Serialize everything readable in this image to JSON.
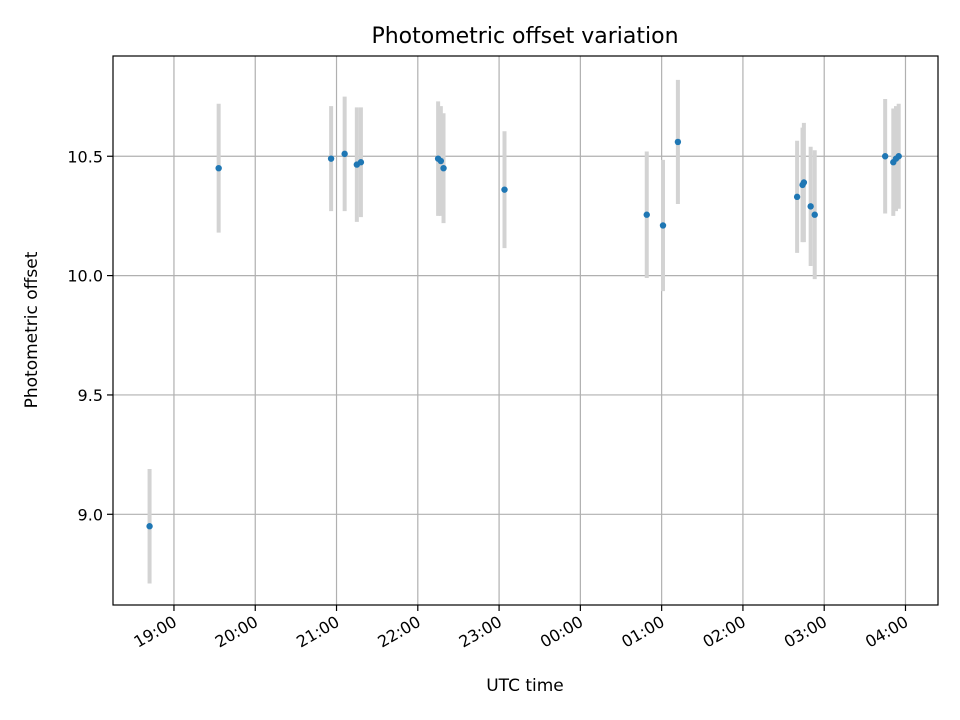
{
  "chart_data": {
    "type": "scatter",
    "title": "Photometric offset variation",
    "xlabel": "UTC time",
    "ylabel": "Photometric offset",
    "x_axis": "time (UTC, HH:MM), night spanning midnight",
    "xlim": [
      "18:15",
      "04:24"
    ],
    "ylim": [
      8.62,
      10.92
    ],
    "x_ticks": [
      "19:00",
      "20:00",
      "21:00",
      "22:00",
      "23:00",
      "00:00",
      "01:00",
      "02:00",
      "03:00",
      "04:00"
    ],
    "y_ticks": [
      "9.0",
      "9.5",
      "10.0",
      "10.5"
    ],
    "grid": true,
    "colors": {
      "point": "#1f77b4",
      "errorbar": "#d3d3d3",
      "grid": "#b0b0b0"
    },
    "series": [
      {
        "points": [
          {
            "x": "18:42",
            "y": 8.95,
            "yerr": 0.24
          },
          {
            "x": "19:33",
            "y": 10.45,
            "yerr": 0.27
          },
          {
            "x": "20:56",
            "y": 10.49,
            "yerr": 0.22
          },
          {
            "x": "21:06",
            "y": 10.51,
            "yerr": 0.24
          },
          {
            "x": "21:15",
            "y": 10.465,
            "yerr": 0.24
          },
          {
            "x": "21:18",
            "y": 10.475,
            "yerr": 0.23
          },
          {
            "x": "22:15",
            "y": 10.49,
            "yerr": 0.24
          },
          {
            "x": "22:17",
            "y": 10.48,
            "yerr": 0.23
          },
          {
            "x": "22:19",
            "y": 10.45,
            "yerr": 0.23
          },
          {
            "x": "23:04",
            "y": 10.36,
            "yerr": 0.245
          },
          {
            "x": "00:49",
            "y": 10.255,
            "yerr": 0.265
          },
          {
            "x": "01:01",
            "y": 10.21,
            "yerr": 0.275
          },
          {
            "x": "01:12",
            "y": 10.56,
            "yerr": 0.26
          },
          {
            "x": "02:40",
            "y": 10.33,
            "yerr": 0.235
          },
          {
            "x": "02:44",
            "y": 10.38,
            "yerr": 0.24
          },
          {
            "x": "02:45",
            "y": 10.39,
            "yerr": 0.25
          },
          {
            "x": "02:50",
            "y": 10.29,
            "yerr": 0.25
          },
          {
            "x": "02:53",
            "y": 10.255,
            "yerr": 0.27
          },
          {
            "x": "03:45",
            "y": 10.5,
            "yerr": 0.24
          },
          {
            "x": "03:51",
            "y": 10.475,
            "yerr": 0.225
          },
          {
            "x": "03:53",
            "y": 10.49,
            "yerr": 0.22
          },
          {
            "x": "03:55",
            "y": 10.5,
            "yerr": 0.22
          }
        ]
      }
    ]
  }
}
